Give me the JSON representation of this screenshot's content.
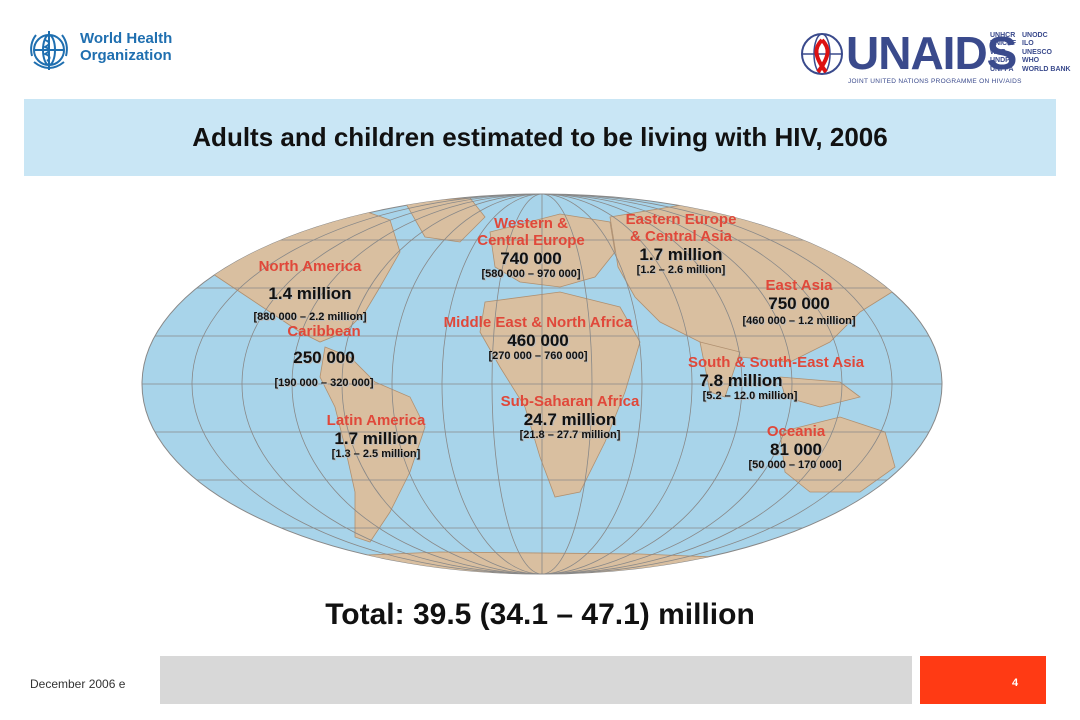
{
  "header": {
    "who_line1": "World Health",
    "who_line2": "Organization",
    "unaids_name": "UNAIDS",
    "unaids_tagline": "JOINT UNITED NATIONS PROGRAMME ON HIV/AIDS",
    "unaids_orgs_col1": [
      "UNHCR",
      "UNICEF",
      "WFP",
      "UNDP",
      "UNFPA"
    ],
    "unaids_orgs_col2": [
      "UNODC",
      "ILO",
      "UNESCO",
      "WHO",
      "WORLD BANK"
    ]
  },
  "title": "Adults and children estimated to be living with HIV, 2006",
  "regions": [
    {
      "id": "north-america",
      "name": "North America",
      "value": "1.4 million",
      "range": "[880 000 – 2.2 million]"
    },
    {
      "id": "caribbean",
      "name": "Caribbean",
      "value": "250 000",
      "range": "[190 000 – 320 000]"
    },
    {
      "id": "latin-america",
      "name": "Latin America",
      "value": "1.7 million",
      "range": "[1.3 – 2.5 million]"
    },
    {
      "id": "western-central-europe",
      "name_line1": "Western &",
      "name_line2": "Central Europe",
      "value": "740 000",
      "range": "[580 000 – 970 000]"
    },
    {
      "id": "middle-east-north-africa",
      "name": "Middle East & North Africa",
      "value": "460 000",
      "range": "[270 000 – 760 000]"
    },
    {
      "id": "sub-saharan-africa",
      "name": "Sub-Saharan Africa",
      "value": "24.7 million",
      "range": "[21.8 – 27.7 million]"
    },
    {
      "id": "eastern-europe-central-asia",
      "name_line1": "Eastern Europe",
      "name_line2": "& Central Asia",
      "value": "1.7 million",
      "range": "[1.2 – 2.6 million]"
    },
    {
      "id": "east-asia",
      "name": "East Asia",
      "value": "750 000",
      "range": "[460 000 – 1.2 million]"
    },
    {
      "id": "south-southeast-asia",
      "name": "South & South-East Asia",
      "value": "7.8 million",
      "range": "[5.2 – 12.0 million]"
    },
    {
      "id": "oceania",
      "name": "Oceania",
      "value": "81 000",
      "range": "[50 000 – 170 000]"
    }
  ],
  "total": "Total: 39.5 (34.1 – 47.1) million",
  "footer": {
    "date": "December 2006  e",
    "page_number": "4"
  },
  "colors": {
    "title_band": "#c9e6f5",
    "region_name": "#e0483a",
    "ocean": "#a8d4ea",
    "land": "#d9bfa0",
    "footer_red": "#ff3a14",
    "footer_grey": "#d8d8d8"
  }
}
